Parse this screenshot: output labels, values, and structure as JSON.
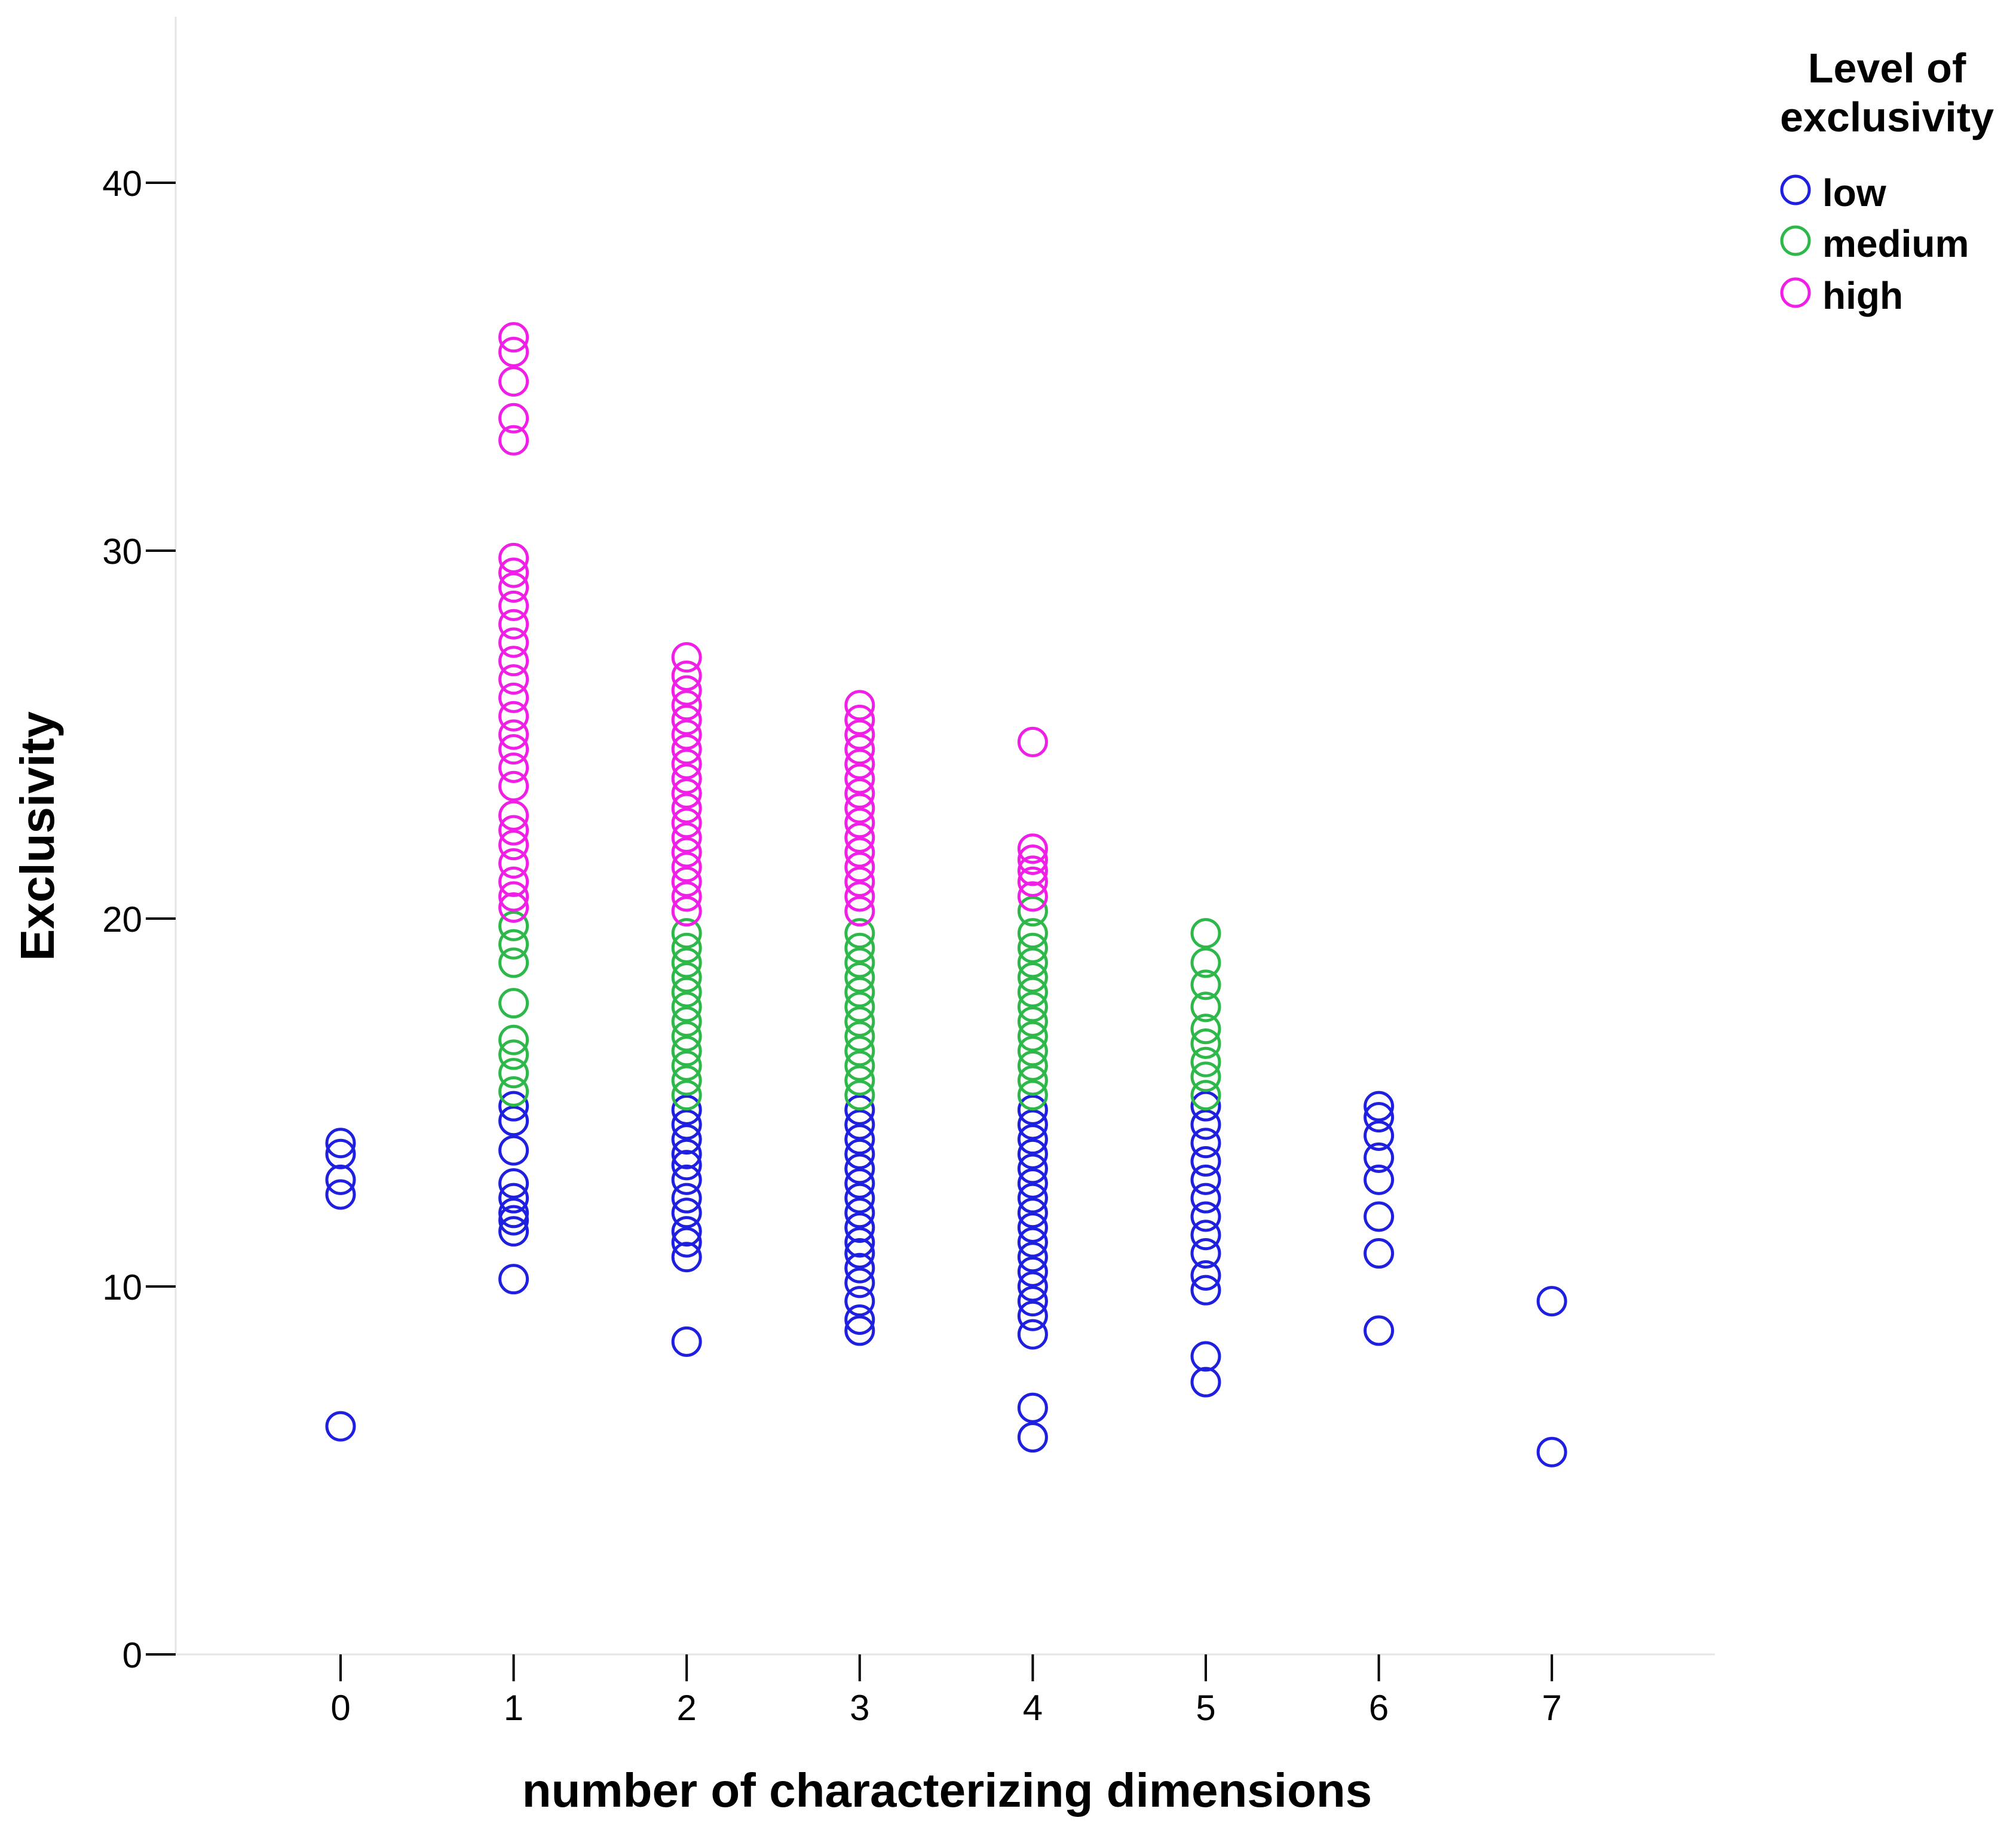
{
  "chart_data": {
    "type": "scatter",
    "title": "",
    "xlabel": "number of characterizing dimensions",
    "ylabel": "Exclusivity",
    "xlim": [
      -1,
      8
    ],
    "ylim": [
      0,
      44
    ],
    "x_ticks": [
      "0",
      "1",
      "2",
      "3",
      "4",
      "5",
      "6",
      "7"
    ],
    "y_ticks": [
      "0",
      "10",
      "20",
      "30",
      "40"
    ],
    "grid": false,
    "legend": {
      "title": "Level of exclusivity",
      "placement": "top-right"
    },
    "series": [
      {
        "name": "low",
        "color": "#1f1fe0",
        "points": [
          [
            0,
            6.2
          ],
          [
            0,
            12.5
          ],
          [
            0,
            12.9
          ],
          [
            0,
            13.6
          ],
          [
            0,
            13.9
          ],
          [
            1,
            10.2
          ],
          [
            1,
            11.5
          ],
          [
            1,
            11.8
          ],
          [
            1,
            12.0
          ],
          [
            1,
            12.4
          ],
          [
            1,
            12.8
          ],
          [
            1,
            13.7
          ],
          [
            1,
            14.5
          ],
          [
            1,
            14.9
          ],
          [
            2,
            8.5
          ],
          [
            2,
            10.8
          ],
          [
            2,
            11.2
          ],
          [
            2,
            11.5
          ],
          [
            2,
            12.0
          ],
          [
            2,
            12.4
          ],
          [
            2,
            12.9
          ],
          [
            2,
            13.3
          ],
          [
            2,
            13.6
          ],
          [
            2,
            14.0
          ],
          [
            2,
            14.4
          ],
          [
            2,
            14.8
          ],
          [
            3,
            8.8
          ],
          [
            3,
            9.1
          ],
          [
            3,
            9.6
          ],
          [
            3,
            10.1
          ],
          [
            3,
            10.5
          ],
          [
            3,
            10.9
          ],
          [
            3,
            11.2
          ],
          [
            3,
            11.6
          ],
          [
            3,
            12.0
          ],
          [
            3,
            12.4
          ],
          [
            3,
            12.8
          ],
          [
            3,
            13.2
          ],
          [
            3,
            13.6
          ],
          [
            3,
            14.0
          ],
          [
            3,
            14.4
          ],
          [
            3,
            14.8
          ],
          [
            4,
            5.9
          ],
          [
            4,
            6.7
          ],
          [
            4,
            8.7
          ],
          [
            4,
            9.2
          ],
          [
            4,
            9.6
          ],
          [
            4,
            10.0
          ],
          [
            4,
            10.4
          ],
          [
            4,
            10.8
          ],
          [
            4,
            11.2
          ],
          [
            4,
            11.6
          ],
          [
            4,
            12.0
          ],
          [
            4,
            12.4
          ],
          [
            4,
            12.8
          ],
          [
            4,
            13.2
          ],
          [
            4,
            13.6
          ],
          [
            4,
            14.0
          ],
          [
            4,
            14.4
          ],
          [
            4,
            14.8
          ],
          [
            5,
            7.4
          ],
          [
            5,
            8.1
          ],
          [
            5,
            9.9
          ],
          [
            5,
            10.3
          ],
          [
            5,
            10.9
          ],
          [
            5,
            11.4
          ],
          [
            5,
            11.9
          ],
          [
            5,
            12.4
          ],
          [
            5,
            12.9
          ],
          [
            5,
            13.4
          ],
          [
            5,
            13.9
          ],
          [
            5,
            14.4
          ],
          [
            5,
            14.9
          ],
          [
            6,
            8.8
          ],
          [
            6,
            10.9
          ],
          [
            6,
            11.9
          ],
          [
            6,
            12.9
          ],
          [
            6,
            13.5
          ],
          [
            6,
            14.1
          ],
          [
            6,
            14.6
          ],
          [
            6,
            14.9
          ],
          [
            7,
            5.5
          ],
          [
            7,
            9.6
          ]
        ]
      },
      {
        "name": "medium",
        "color": "#2eb84a",
        "points": [
          [
            1,
            15.3
          ],
          [
            1,
            15.8
          ],
          [
            1,
            16.3
          ],
          [
            1,
            16.7
          ],
          [
            1,
            17.7
          ],
          [
            1,
            18.8
          ],
          [
            1,
            19.3
          ],
          [
            1,
            19.8
          ],
          [
            2,
            15.2
          ],
          [
            2,
            15.6
          ],
          [
            2,
            16.0
          ],
          [
            2,
            16.4
          ],
          [
            2,
            16.8
          ],
          [
            2,
            17.2
          ],
          [
            2,
            17.6
          ],
          [
            2,
            18.0
          ],
          [
            2,
            18.4
          ],
          [
            2,
            18.8
          ],
          [
            2,
            19.2
          ],
          [
            2,
            19.6
          ],
          [
            3,
            15.2
          ],
          [
            3,
            15.6
          ],
          [
            3,
            16.0
          ],
          [
            3,
            16.4
          ],
          [
            3,
            16.8
          ],
          [
            3,
            17.2
          ],
          [
            3,
            17.6
          ],
          [
            3,
            18.0
          ],
          [
            3,
            18.4
          ],
          [
            3,
            18.8
          ],
          [
            3,
            19.2
          ],
          [
            3,
            19.6
          ],
          [
            4,
            15.2
          ],
          [
            4,
            15.6
          ],
          [
            4,
            16.0
          ],
          [
            4,
            16.4
          ],
          [
            4,
            16.8
          ],
          [
            4,
            17.2
          ],
          [
            4,
            17.6
          ],
          [
            4,
            18.0
          ],
          [
            4,
            18.4
          ],
          [
            4,
            18.8
          ],
          [
            4,
            19.2
          ],
          [
            4,
            19.6
          ],
          [
            4,
            20.2
          ],
          [
            5,
            15.2
          ],
          [
            5,
            15.7
          ],
          [
            5,
            16.1
          ],
          [
            5,
            16.6
          ],
          [
            5,
            17.0
          ],
          [
            5,
            17.6
          ],
          [
            5,
            18.2
          ],
          [
            5,
            18.8
          ],
          [
            5,
            19.6
          ]
        ]
      },
      {
        "name": "high",
        "color": "#f01ee6",
        "points": [
          [
            1,
            20.3
          ],
          [
            1,
            20.6
          ],
          [
            1,
            21.0
          ],
          [
            1,
            21.5
          ],
          [
            1,
            22.0
          ],
          [
            1,
            22.4
          ],
          [
            1,
            22.8
          ],
          [
            1,
            23.6
          ],
          [
            1,
            24.1
          ],
          [
            1,
            24.6
          ],
          [
            1,
            25.0
          ],
          [
            1,
            25.5
          ],
          [
            1,
            26.0
          ],
          [
            1,
            26.5
          ],
          [
            1,
            27.0
          ],
          [
            1,
            27.5
          ],
          [
            1,
            28.0
          ],
          [
            1,
            28.5
          ],
          [
            1,
            29.0
          ],
          [
            1,
            29.4
          ],
          [
            1,
            29.8
          ],
          [
            1,
            33.0
          ],
          [
            1,
            33.6
          ],
          [
            1,
            34.6
          ],
          [
            1,
            35.4
          ],
          [
            1,
            35.8
          ],
          [
            2,
            20.2
          ],
          [
            2,
            20.6
          ],
          [
            2,
            21.0
          ],
          [
            2,
            21.4
          ],
          [
            2,
            21.8
          ],
          [
            2,
            22.2
          ],
          [
            2,
            22.6
          ],
          [
            2,
            23.0
          ],
          [
            2,
            23.4
          ],
          [
            2,
            23.8
          ],
          [
            2,
            24.2
          ],
          [
            2,
            24.6
          ],
          [
            2,
            25.0
          ],
          [
            2,
            25.4
          ],
          [
            2,
            25.8
          ],
          [
            2,
            26.2
          ],
          [
            2,
            26.6
          ],
          [
            2,
            27.1
          ],
          [
            3,
            20.2
          ],
          [
            3,
            20.6
          ],
          [
            3,
            21.0
          ],
          [
            3,
            21.4
          ],
          [
            3,
            21.8
          ],
          [
            3,
            22.2
          ],
          [
            3,
            22.6
          ],
          [
            3,
            23.0
          ],
          [
            3,
            23.4
          ],
          [
            3,
            23.8
          ],
          [
            3,
            24.2
          ],
          [
            3,
            24.6
          ],
          [
            3,
            25.0
          ],
          [
            3,
            25.4
          ],
          [
            3,
            25.8
          ],
          [
            4,
            20.6
          ],
          [
            4,
            21.0
          ],
          [
            4,
            21.3
          ],
          [
            4,
            21.6
          ],
          [
            4,
            21.9
          ],
          [
            4,
            24.8
          ]
        ]
      }
    ]
  }
}
